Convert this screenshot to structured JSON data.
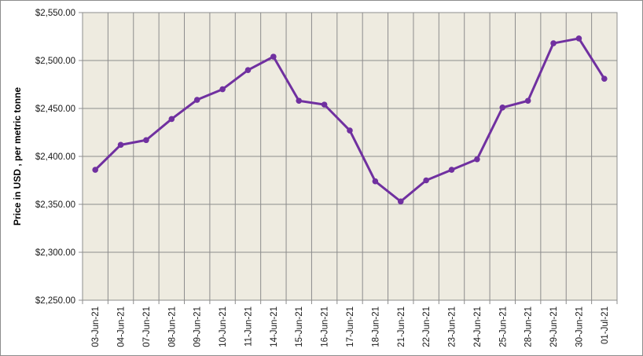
{
  "chart_data": {
    "type": "line",
    "ylabel": "Price in USD , per metric tonne",
    "xlabel": "",
    "title": "",
    "ylim": [
      2250,
      2550
    ],
    "y_ticks": [
      2250,
      2300,
      2350,
      2400,
      2450,
      2500,
      2550
    ],
    "y_tick_labels": [
      "$2,250.00",
      "$2,300.00",
      "$2,350.00",
      "$2,400.00",
      "$2,450.00",
      "$2,500.00",
      "$2,550.00"
    ],
    "categories": [
      "03-Jun-21",
      "04-Jun-21",
      "07-Jun-21",
      "08-Jun-21",
      "09-Jun-21",
      "10-Jun-21",
      "11-Jun-21",
      "14-Jun-21",
      "15-Jun-21",
      "16-Jun-21",
      "17-Jun-21",
      "18-Jun-21",
      "21-Jun-21",
      "22-Jun-21",
      "23-Jun-21",
      "24-Jun-21",
      "25-Jun-21",
      "28-Jun-21",
      "29-Jun-21",
      "30-Jun-21",
      "01-Jul-21"
    ],
    "series": [
      {
        "values": [
          2386,
          2412,
          2417,
          2439,
          2459,
          2470,
          2490,
          2504,
          2458,
          2454,
          2427,
          2374,
          2353,
          2375,
          2386,
          2397,
          2451,
          2458,
          2518,
          2523,
          2481
        ]
      }
    ],
    "grid": true,
    "colors": {
      "line": "#7030a0",
      "plot_background": "#eeebe0",
      "grid": "#8c8c8c"
    }
  }
}
